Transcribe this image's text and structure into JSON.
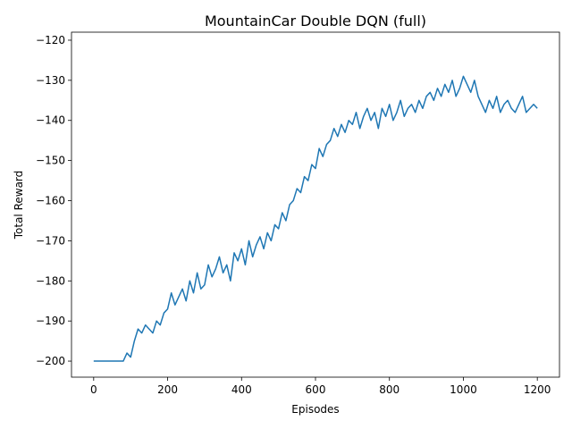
{
  "chart_data": {
    "type": "line",
    "title": "MountainCar Double DQN (full)",
    "xlabel": "Episodes",
    "ylabel": "Total Reward",
    "xlim": [
      -60,
      1260
    ],
    "ylim": [
      -204,
      -118
    ],
    "xticks": [
      0,
      200,
      400,
      600,
      800,
      1000,
      1200
    ],
    "yticks": [
      -200,
      -190,
      -180,
      -170,
      -160,
      -150,
      -140,
      -130,
      -120
    ],
    "xtick_labels": [
      "0",
      "200",
      "400",
      "600",
      "800",
      "1000",
      "1200"
    ],
    "ytick_labels": [
      "−200",
      "−190",
      "−180",
      "−170",
      "−160",
      "−150",
      "−140",
      "−130",
      "−120"
    ],
    "grid": false,
    "color": "#1f77b4",
    "series": [
      {
        "x": [
          0,
          20,
          40,
          60,
          80,
          90,
          100,
          110,
          120,
          130,
          140,
          150,
          160,
          170,
          180,
          190,
          200,
          210,
          220,
          230,
          240,
          250,
          260,
          270,
          280,
          290,
          300,
          310,
          320,
          330,
          340,
          350,
          360,
          370,
          380,
          390,
          400,
          410,
          420,
          430,
          440,
          450,
          460,
          470,
          480,
          490,
          500,
          510,
          520,
          530,
          540,
          550,
          560,
          570,
          580,
          590,
          600,
          610,
          620,
          630,
          640,
          650,
          660,
          670,
          680,
          690,
          700,
          710,
          720,
          730,
          740,
          750,
          760,
          770,
          780,
          790,
          800,
          810,
          820,
          830,
          840,
          850,
          860,
          870,
          880,
          890,
          900,
          910,
          920,
          930,
          940,
          950,
          960,
          970,
          980,
          990,
          1000,
          1010,
          1020,
          1030,
          1040,
          1050,
          1060,
          1070,
          1080,
          1090,
          1100,
          1110,
          1120,
          1130,
          1140,
          1150,
          1160,
          1170,
          1180,
          1190,
          1200
        ],
        "y": [
          -200,
          -200,
          -200,
          -200,
          -200,
          -198,
          -199,
          -195,
          -192,
          -193,
          -191,
          -192,
          -193,
          -190,
          -191,
          -188,
          -187,
          -183,
          -186,
          -184,
          -182,
          -185,
          -180,
          -183,
          -178,
          -182,
          -181,
          -176,
          -179,
          -177,
          -174,
          -178,
          -176,
          -180,
          -173,
          -175,
          -172,
          -176,
          -170,
          -174,
          -171,
          -169,
          -172,
          -168,
          -170,
          -166,
          -167,
          -163,
          -165,
          -161,
          -160,
          -157,
          -158,
          -154,
          -155,
          -151,
          -152,
          -147,
          -149,
          -146,
          -145,
          -142,
          -144,
          -141,
          -143,
          -140,
          -141,
          -138,
          -142,
          -139,
          -137,
          -140,
          -138,
          -142,
          -137,
          -139,
          -136,
          -140,
          -138,
          -135,
          -139,
          -137,
          -136,
          -138,
          -135,
          -137,
          -134,
          -133,
          -135,
          -132,
          -134,
          -131,
          -133,
          -130,
          -134,
          -132,
          -129,
          -131,
          -133,
          -130,
          -134,
          -136,
          -138,
          -135,
          -137,
          -134,
          -138,
          -136,
          -135,
          -137,
          -138,
          -136,
          -134,
          -138,
          -137,
          -136,
          -137
        ]
      }
    ]
  }
}
